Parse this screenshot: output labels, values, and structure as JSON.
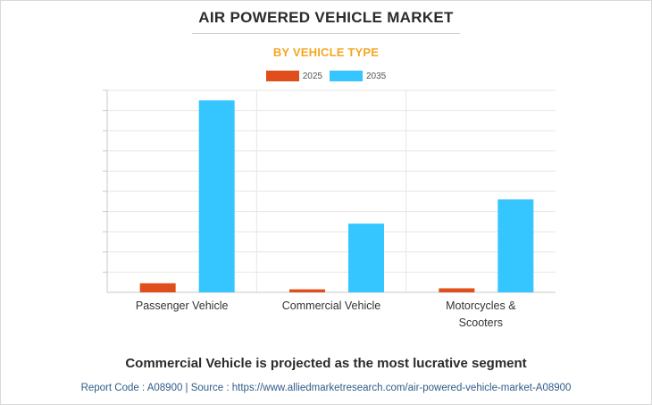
{
  "header": {
    "title": "AIR POWERED VEHICLE MARKET",
    "subtitle": "BY VEHICLE TYPE"
  },
  "footer": {
    "note": "Commercial Vehicle is projected as the most lucrative segment",
    "source": "Report Code : A08900  |  Source : https://www.alliedmarketresearch.com/air-powered-vehicle-market-A08900"
  },
  "colors": {
    "series_2025": "#e04e1b",
    "series_2035": "#35c5ff",
    "title": "#2b2b2b",
    "subtitle": "#f5a623",
    "source": "#2e5c8a"
  },
  "chart_data": {
    "type": "bar",
    "title": "AIR POWERED VEHICLE MARKET",
    "subtitle": "BY VEHICLE TYPE",
    "categories": [
      "Passenger Vehicle",
      "Commercial Vehicle",
      "Motorcycles & Scooters"
    ],
    "category_lines": [
      [
        "Passenger Vehicle"
      ],
      [
        "Commercial Vehicle"
      ],
      [
        "Motorcycles &",
        "Scooters"
      ]
    ],
    "series": [
      {
        "name": "2025",
        "color": "#e04e1b",
        "values": [
          4.5,
          1.5,
          2.0
        ]
      },
      {
        "name": "2035",
        "color": "#35c5ff",
        "values": [
          95,
          34,
          46
        ]
      }
    ],
    "ylim": [
      0,
      100
    ],
    "grid": true,
    "legend_position": "top-center",
    "xlabel": "",
    "ylabel": ""
  }
}
